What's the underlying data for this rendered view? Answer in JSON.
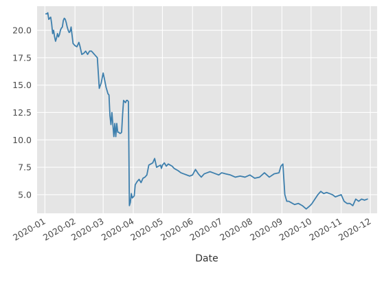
{
  "chart_data": {
    "type": "line",
    "title": "",
    "xlabel": "Date",
    "ylabel": "",
    "xlim": [
      "2019-12-24",
      "2020-12-08"
    ],
    "ylim": [
      3.3,
      22.2
    ],
    "grid": true,
    "background": "#e5e5e5",
    "grid_color": "#ffffff",
    "line_color": "#3d7fad",
    "x_ticks": [
      "2020-01",
      "2020-02",
      "2020-03",
      "2020-04",
      "2020-05",
      "2020-06",
      "2020-07",
      "2020-08",
      "2020-09",
      "2020-10",
      "2020-11",
      "2020-12"
    ],
    "y_ticks": [
      "5.0",
      "7.5",
      "10.0",
      "12.5",
      "15.0",
      "17.5",
      "20.0"
    ],
    "series": [
      {
        "name": "",
        "x": [
          "2020-01-02",
          "2020-01-03",
          "2020-01-04",
          "2020-01-05",
          "2020-01-06",
          "2020-01-07",
          "2020-01-08",
          "2020-01-09",
          "2020-01-10",
          "2020-01-11",
          "2020-01-12",
          "2020-01-13",
          "2020-01-14",
          "2020-01-15",
          "2020-01-16",
          "2020-01-17",
          "2020-01-18",
          "2020-01-19",
          "2020-01-20",
          "2020-01-21",
          "2020-01-22",
          "2020-01-23",
          "2020-01-24",
          "2020-01-25",
          "2020-01-26",
          "2020-01-27",
          "2020-01-28",
          "2020-01-30",
          "2020-02-01",
          "2020-02-03",
          "2020-02-05",
          "2020-02-06",
          "2020-02-08",
          "2020-02-10",
          "2020-02-12",
          "2020-02-14",
          "2020-02-16",
          "2020-02-18",
          "2020-02-20",
          "2020-02-22",
          "2020-02-24",
          "2020-02-26",
          "2020-02-28",
          "2020-03-01",
          "2020-03-02",
          "2020-03-04",
          "2020-03-05",
          "2020-03-06",
          "2020-03-07",
          "2020-03-08",
          "2020-03-09",
          "2020-03-10",
          "2020-03-11",
          "2020-03-12",
          "2020-03-13",
          "2020-03-14",
          "2020-03-15",
          "2020-03-16",
          "2020-03-17",
          "2020-03-18",
          "2020-03-19",
          "2020-03-20",
          "2020-03-21",
          "2020-03-22",
          "2020-03-24",
          "2020-03-25",
          "2020-03-26",
          "2020-03-27",
          "2020-03-28",
          "2020-03-29",
          "2020-03-30",
          "2020-03-31",
          "2020-04-01",
          "2020-04-02",
          "2020-04-03",
          "2020-04-05",
          "2020-04-07",
          "2020-04-09",
          "2020-04-11",
          "2020-04-13",
          "2020-04-15",
          "2020-04-17",
          "2020-04-19",
          "2020-04-21",
          "2020-04-23",
          "2020-04-25",
          "2020-04-27",
          "2020-04-29",
          "2020-04-30",
          "2020-05-01",
          "2020-05-03",
          "2020-05-05",
          "2020-05-07",
          "2020-05-09",
          "2020-05-11",
          "2020-05-13",
          "2020-05-15",
          "2020-05-17",
          "2020-05-20",
          "2020-05-23",
          "2020-05-26",
          "2020-05-29",
          "2020-06-01",
          "2020-06-04",
          "2020-06-07",
          "2020-06-10",
          "2020-06-13",
          "2020-06-16",
          "2020-06-19",
          "2020-06-22",
          "2020-06-25",
          "2020-06-28",
          "2020-07-01",
          "2020-07-05",
          "2020-07-10",
          "2020-07-15",
          "2020-07-20",
          "2020-07-25",
          "2020-07-30",
          "2020-08-04",
          "2020-08-09",
          "2020-08-14",
          "2020-08-19",
          "2020-08-24",
          "2020-08-29",
          "2020-08-31",
          "2020-09-02",
          "2020-09-04",
          "2020-09-06",
          "2020-09-08",
          "2020-09-10",
          "2020-09-14",
          "2020-09-18",
          "2020-09-22",
          "2020-09-26",
          "2020-09-30",
          "2020-10-02",
          "2020-10-05",
          "2020-10-08",
          "2020-10-11",
          "2020-10-14",
          "2020-10-17",
          "2020-10-20",
          "2020-10-23",
          "2020-10-26",
          "2020-10-29",
          "2020-11-01",
          "2020-11-04",
          "2020-11-07",
          "2020-11-10",
          "2020-11-13",
          "2020-11-16",
          "2020-11-19",
          "2020-11-22",
          "2020-11-25",
          "2020-11-28"
        ],
        "values": [
          21.5,
          21.5,
          21.6,
          21.0,
          21.1,
          21.2,
          20.6,
          19.7,
          20.0,
          19.4,
          19.0,
          19.3,
          19.7,
          19.4,
          19.6,
          20.0,
          20.2,
          20.3,
          20.9,
          21.1,
          21.0,
          20.7,
          20.3,
          20.0,
          19.8,
          19.9,
          20.3,
          18.8,
          18.6,
          18.5,
          18.9,
          18.6,
          17.8,
          17.9,
          18.1,
          17.8,
          18.1,
          18.1,
          17.9,
          17.7,
          17.5,
          14.7,
          15.2,
          16.1,
          15.7,
          14.8,
          14.5,
          14.2,
          14.1,
          12.2,
          11.4,
          12.5,
          11.4,
          10.3,
          11.5,
          10.3,
          11.5,
          10.7,
          10.7,
          10.6,
          10.6,
          10.7,
          12.3,
          13.6,
          13.4,
          13.6,
          13.6,
          13.5,
          4.0,
          4.3,
          5.1,
          4.7,
          4.8,
          4.9,
          5.9,
          6.2,
          6.4,
          6.1,
          6.5,
          6.6,
          6.8,
          7.7,
          7.8,
          7.9,
          8.3,
          7.5,
          7.6,
          7.7,
          7.4,
          7.7,
          7.9,
          7.6,
          7.8,
          7.7,
          7.6,
          7.4,
          7.3,
          7.2,
          7.0,
          6.9,
          6.8,
          6.7,
          6.8,
          7.3,
          6.9,
          6.6,
          6.9,
          7.0,
          7.1,
          7.0,
          6.9,
          6.8,
          7.0,
          6.9,
          6.8,
          6.6,
          6.7,
          6.6,
          6.8,
          6.5,
          6.6,
          7.0,
          6.6,
          6.9,
          7.0,
          7.6,
          7.8,
          5.0,
          4.4,
          4.4,
          4.3,
          4.1,
          4.2,
          4.0,
          3.7,
          4.0,
          4.2,
          4.6,
          5.0,
          5.3,
          5.1,
          5.2,
          5.1,
          5.0,
          4.8,
          4.9,
          5.0,
          4.4,
          4.2,
          4.2,
          4.0,
          4.6,
          4.4,
          4.6,
          4.5,
          4.6
        ]
      }
    ]
  }
}
